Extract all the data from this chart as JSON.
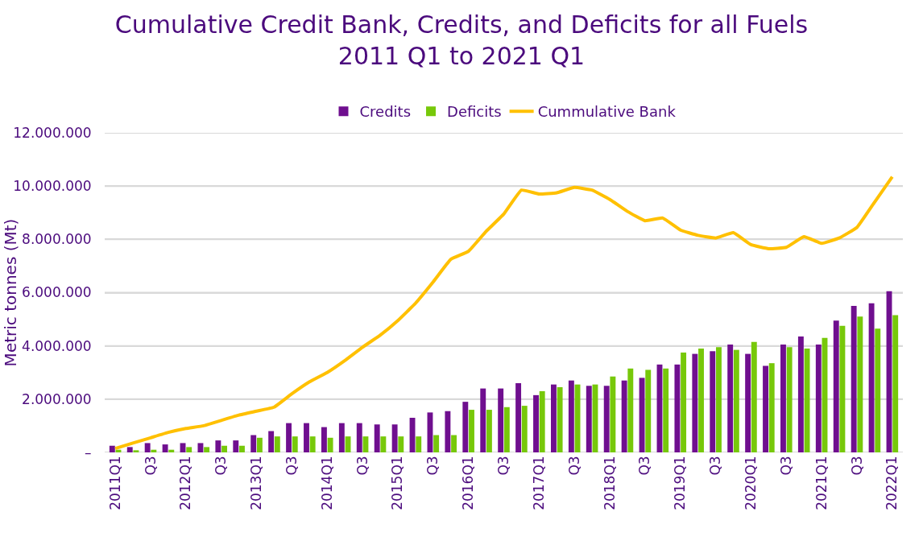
{
  "chart_data": {
    "type": "bar",
    "title": "Cumulative Credit Bank, Credits, and Deficits for all Fuels 2011 Q1 to 2021 Q1",
    "ylabel": "Metric tonnes (Mt)",
    "categories": [
      "2011Q1",
      null,
      "Q3",
      null,
      "2012Q1",
      null,
      "Q3",
      null,
      "2013Q1",
      null,
      "Q3",
      null,
      "2014Q1",
      null,
      "Q3",
      null,
      "2015Q1",
      null,
      "Q3",
      null,
      "2016Q1",
      null,
      "Q3",
      null,
      "2017Q1",
      null,
      "Q3",
      null,
      "2018Q1",
      null,
      "Q3",
      null,
      "2019Q1",
      null,
      "Q3",
      null,
      "2020Q1",
      null,
      "Q3",
      null,
      "2021Q1",
      null,
      "Q3",
      null,
      "2022Q1"
    ],
    "series": [
      {
        "name": "Credits",
        "color": "#6f0f8f",
        "values": [
          250000,
          200000,
          350000,
          300000,
          350000,
          350000,
          450000,
          450000,
          650000,
          800000,
          1100000,
          1100000,
          950000,
          1100000,
          1100000,
          1050000,
          1050000,
          1300000,
          1500000,
          1550000,
          1900000,
          2400000,
          2400000,
          2600000,
          2150000,
          2550000,
          2700000,
          2500000,
          2500000,
          2700000,
          2800000,
          3300000,
          3300000,
          3700000,
          3800000,
          4050000,
          3700000,
          3250000,
          4050000,
          4350000,
          4050000,
          4950000,
          5500000,
          5600000,
          6050000
        ]
      },
      {
        "name": "Deficits",
        "color": "#77c80a",
        "values": [
          100000,
          80000,
          100000,
          100000,
          200000,
          200000,
          250000,
          250000,
          550000,
          600000,
          600000,
          600000,
          550000,
          600000,
          600000,
          600000,
          600000,
          600000,
          650000,
          650000,
          1600000,
          1600000,
          1700000,
          1750000,
          2300000,
          2450000,
          2550000,
          2550000,
          2850000,
          3150000,
          3100000,
          3150000,
          3750000,
          3900000,
          3950000,
          3850000,
          4150000,
          3350000,
          3950000,
          3900000,
          4300000,
          4750000,
          5100000,
          4650000,
          5150000
        ]
      },
      {
        "name": "Cummulative Bank",
        "type": "line",
        "color": "#ffc000",
        "values": [
          150000,
          350000,
          550000,
          750000,
          900000,
          1000000,
          1200000,
          1400000,
          1550000,
          1700000,
          2200000,
          2650000,
          3000000,
          3450000,
          3950000,
          4400000,
          4950000,
          5600000,
          6400000,
          7250000,
          7550000,
          8300000,
          8950000,
          9850000,
          9700000,
          9750000,
          9950000,
          9850000,
          9500000,
          9050000,
          8700000,
          8800000,
          8350000,
          8150000,
          8050000,
          8250000,
          7800000,
          7650000,
          7700000,
          8100000,
          7850000,
          8050000,
          8450000,
          9400000,
          10350000
        ]
      }
    ],
    "ylim": [
      0,
      12000000
    ],
    "yticks": [
      {
        "value": 0,
        "label": "–"
      },
      {
        "value": 2000000,
        "label": "2.000.000"
      },
      {
        "value": 4000000,
        "label": "4.000.000"
      },
      {
        "value": 6000000,
        "label": "6.000.000"
      },
      {
        "value": 8000000,
        "label": "8.000.000"
      },
      {
        "value": 10000000,
        "label": "10.000.000"
      },
      {
        "value": 12000000,
        "label": "12.000.000"
      }
    ],
    "grid": "y",
    "legend": "top",
    "marker": "none",
    "line_style": "solid"
  }
}
